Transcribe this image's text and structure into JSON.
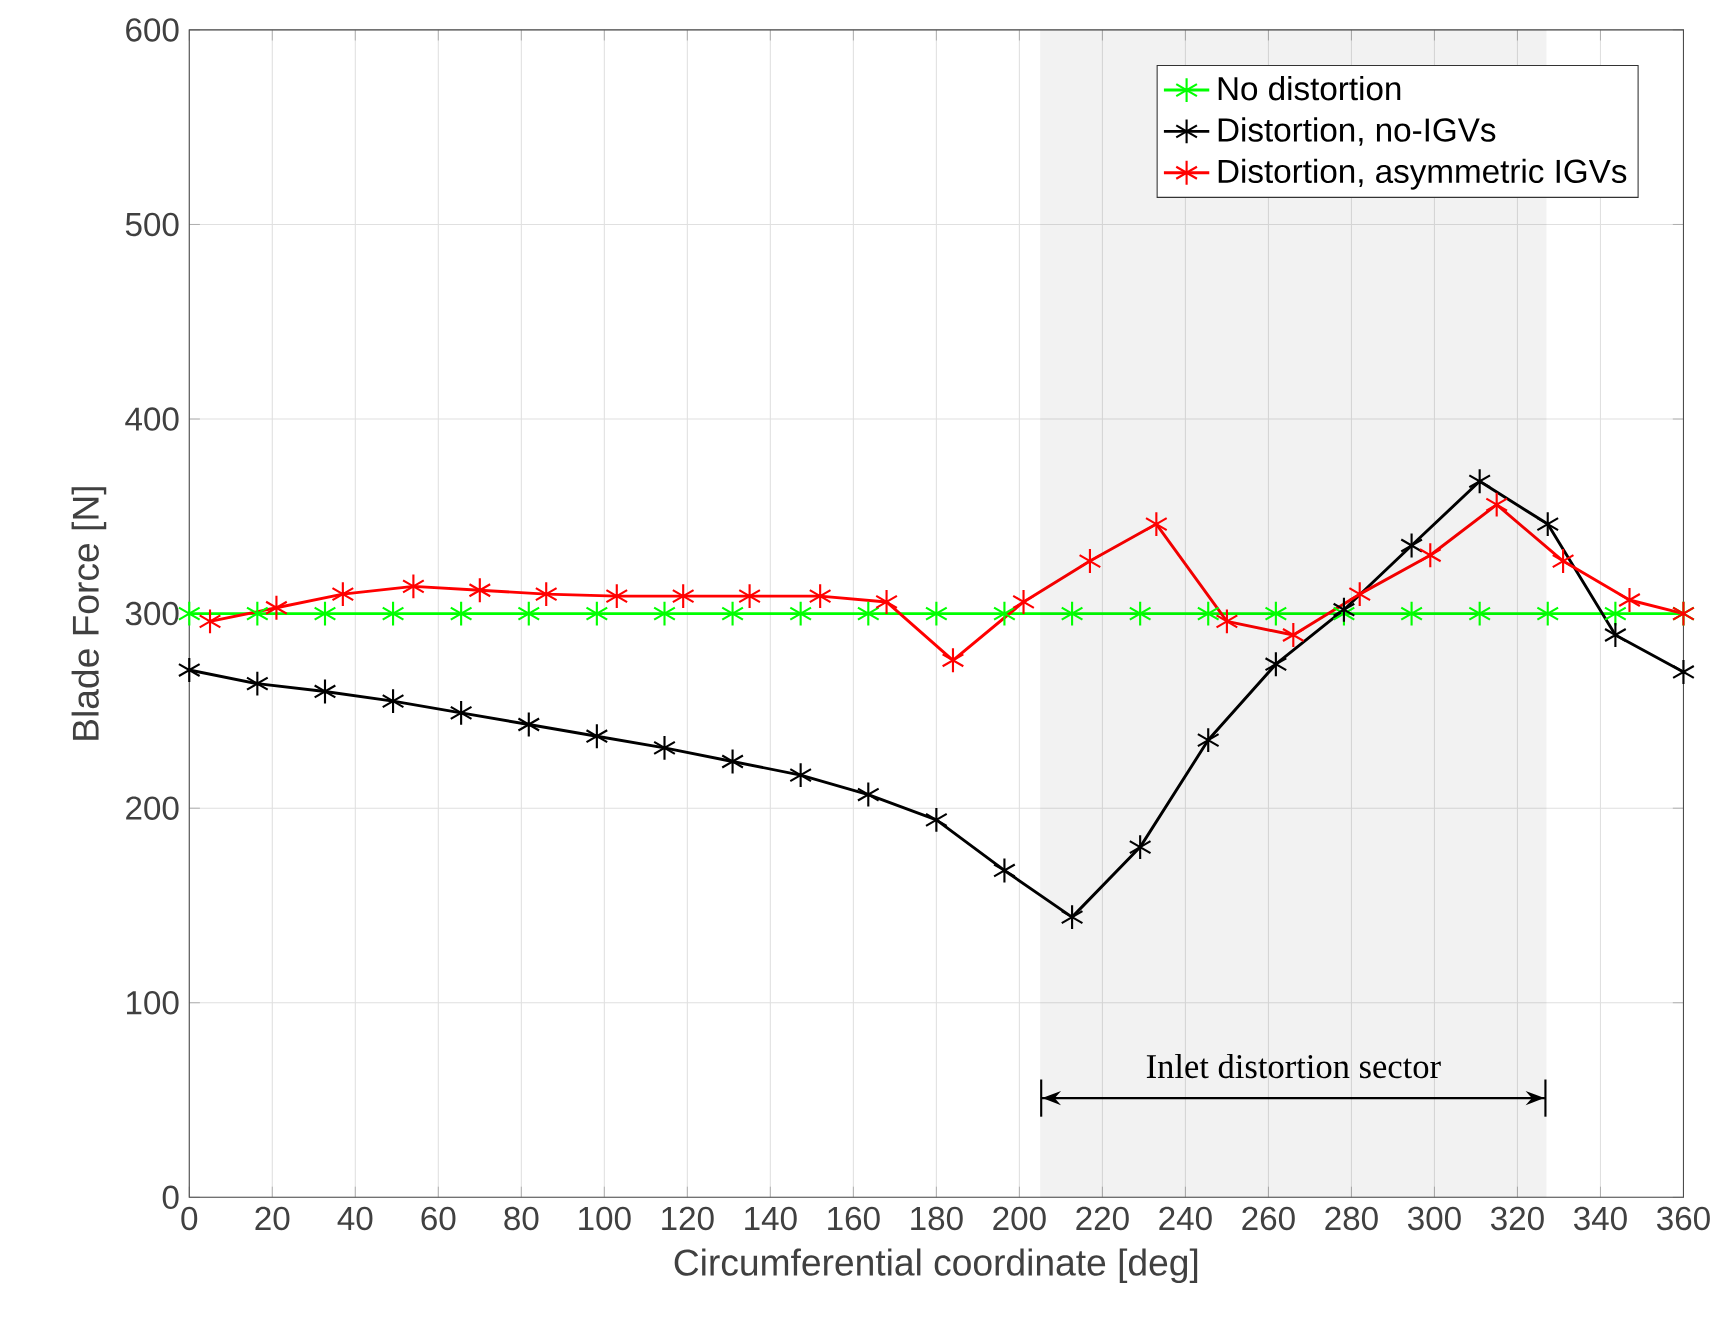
{
  "chart_data": {
    "type": "line",
    "xlabel": "Circumferential coordinate [deg]",
    "ylabel": "Blade Force [N]",
    "xlim": [
      0,
      360
    ],
    "ylim": [
      0,
      600
    ],
    "xticks": [
      0,
      20,
      40,
      60,
      80,
      100,
      120,
      140,
      160,
      180,
      200,
      220,
      240,
      260,
      280,
      300,
      320,
      340,
      360
    ],
    "yticks": [
      0,
      100,
      200,
      300,
      400,
      500,
      600
    ],
    "grid": true,
    "legend": "top right",
    "marker": "cross",
    "line_style": "solid",
    "bands": [
      {
        "axis": "x",
        "from": 205,
        "to": 327,
        "label": "Inlet distortion sector"
      }
    ],
    "series": [
      {
        "name": "No distortion",
        "color": "#00ff00",
        "x": [
          0,
          16.4,
          32.7,
          49.1,
          65.5,
          81.8,
          98.2,
          114.5,
          130.9,
          147.3,
          163.6,
          180,
          196.4,
          212.7,
          229.1,
          245.5,
          261.8,
          278.2,
          294.5,
          310.9,
          327.3,
          343.6,
          360
        ],
        "values": [
          300,
          300,
          300,
          300,
          300,
          300,
          300,
          300,
          300,
          300,
          300,
          300,
          300,
          300,
          300,
          300,
          300,
          300,
          300,
          300,
          300,
          300,
          300
        ]
      },
      {
        "name": "Distortion, no-IGVs",
        "color": "#000000",
        "x": [
          0,
          16.4,
          32.7,
          49.1,
          65.5,
          81.8,
          98.2,
          114.5,
          130.9,
          147.3,
          163.6,
          180,
          196.4,
          212.7,
          229.1,
          245.5,
          261.8,
          278.2,
          294.5,
          310.9,
          327.3,
          343.6,
          360
        ],
        "values": [
          271,
          264,
          260,
          255,
          249,
          243,
          237,
          231,
          224,
          217,
          207,
          194,
          168,
          144,
          180,
          235,
          274,
          302,
          335,
          368,
          346,
          289,
          270
        ]
      },
      {
        "name": "Distortion, asymmetric IGVs",
        "color": "#ff0000",
        "x": [
          5,
          21,
          37,
          54,
          70,
          86,
          103,
          119,
          135,
          152,
          168,
          184,
          201,
          217,
          233,
          250,
          266,
          282,
          299,
          315,
          331,
          347,
          360
        ],
        "values": [
          296,
          303,
          310,
          314,
          312,
          310,
          309,
          309,
          309,
          309,
          306,
          276,
          306,
          327,
          346,
          296,
          289,
          310,
          330,
          356,
          327,
          307,
          300
        ]
      }
    ]
  }
}
